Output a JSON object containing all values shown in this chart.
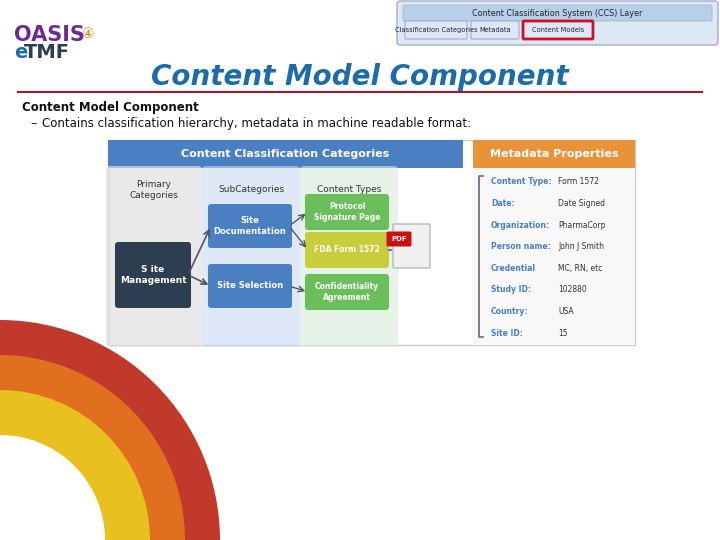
{
  "title": "Content Model Component",
  "subtitle": "Content Model Component",
  "bullet": "Contains classification hierarchy, metadata in machine readable format:",
  "bg_color": "#ffffff",
  "title_color": "#1B6CA8",
  "title_underline_color": "#A0192B",
  "oasis_color": "#6B2C9A",
  "etmf_e_color": "#1B6CA8",
  "etmf_tmf_color": "#2C3E50",
  "ccs_layer_text": "Content Classification System (CCS) Layer",
  "ccs_buttons": [
    "Classification Categories",
    "Metadata",
    "Content Models"
  ],
  "ccs_button_highlight": 2,
  "header_blue": "#4A7FC1",
  "header_orange": "#E8923A",
  "header_blue_text": "Content Classification Categories",
  "header_orange_text": "Metadata Properties",
  "col_headers": [
    "Primary\nCategories",
    "SubCategories",
    "Content Types"
  ],
  "primary_box_text": "S ite\nManagement",
  "primary_box_color": "#2C3E50",
  "sub_boxes": [
    "Site\nDocumentation",
    "Site Selection"
  ],
  "sub_box_color": "#4A7FC1",
  "content_boxes": [
    "Protocol\nSignature Page",
    "FDA Form 1572",
    "Confidentiality\nAgreement"
  ],
  "content_box_colors": [
    "#6BBF5A",
    "#C8CE3A",
    "#6BBF5A"
  ],
  "metadata_labels": [
    "Content Type:",
    "Date:",
    "Organization:",
    "Person name:",
    "Credential",
    "Study ID:",
    "Country:",
    "Site ID:"
  ],
  "metadata_values": [
    "Form 1572",
    "Date Signed",
    "PharmaCorp",
    "John J Smith",
    "MC, RN, etc",
    "102880",
    "USA",
    "15"
  ],
  "metadata_label_color": "#4A7FC1",
  "wave_colors": [
    "#C0392B",
    "#E07020",
    "#E8C020"
  ]
}
